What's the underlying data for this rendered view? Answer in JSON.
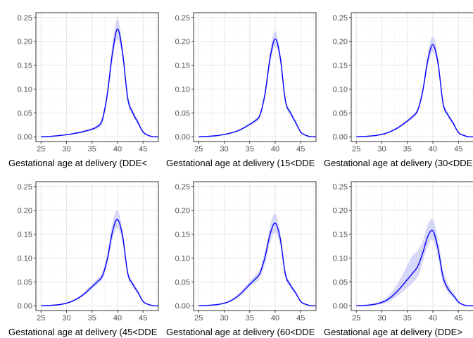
{
  "colors": {
    "line": "#0000ff",
    "band": "#c9c9f5",
    "grid_major": "#e6e6e6",
    "grid_minor": "#f2f2f2",
    "panel_border": "#333333"
  },
  "chart_data": [
    {
      "type": "line",
      "xlabel": "Gestational age at delivery (DDE<",
      "xlim": [
        24,
        48
      ],
      "ylim": [
        -0.01,
        0.26
      ],
      "x_ticks": [
        "25",
        "30",
        "35",
        "40",
        "45"
      ],
      "y_ticks": [
        "0.00",
        "0.05",
        "0.10",
        "0.15",
        "0.20",
        "0.25"
      ],
      "grid": true,
      "x": [
        25,
        27,
        29,
        31,
        33,
        35,
        36,
        37,
        38,
        39,
        40,
        41,
        42,
        43,
        44,
        45,
        46,
        47,
        48
      ],
      "y": [
        0.0,
        0.001,
        0.003,
        0.006,
        0.01,
        0.016,
        0.021,
        0.035,
        0.09,
        0.175,
        0.226,
        0.175,
        0.08,
        0.05,
        0.03,
        0.01,
        0.003,
        0.0,
        0.0
      ],
      "band_upper": [
        0.001,
        0.002,
        0.004,
        0.007,
        0.012,
        0.019,
        0.025,
        0.042,
        0.1,
        0.195,
        0.248,
        0.188,
        0.09,
        0.057,
        0.035,
        0.013,
        0.004,
        0.001,
        0.0
      ],
      "band_lower": [
        0.0,
        0.0,
        0.002,
        0.005,
        0.008,
        0.013,
        0.017,
        0.028,
        0.08,
        0.16,
        0.205,
        0.162,
        0.072,
        0.044,
        0.025,
        0.007,
        0.002,
        0.0,
        0.0
      ]
    },
    {
      "type": "line",
      "xlabel": "Gestational age at delivery (15<DDE",
      "xlim": [
        24,
        48
      ],
      "ylim": [
        -0.01,
        0.26
      ],
      "x_ticks": [
        "25",
        "30",
        "35",
        "40",
        "45"
      ],
      "y_ticks": [
        "0.00",
        "0.05",
        "0.10",
        "0.15",
        "0.20",
        "0.25"
      ],
      "grid": true,
      "x": [
        25,
        27,
        29,
        31,
        33,
        35,
        36,
        37,
        38,
        39,
        40,
        41,
        42,
        43,
        44,
        45,
        46,
        47,
        48
      ],
      "y": [
        0.0,
        0.001,
        0.003,
        0.007,
        0.014,
        0.026,
        0.033,
        0.045,
        0.09,
        0.165,
        0.205,
        0.165,
        0.075,
        0.05,
        0.03,
        0.01,
        0.003,
        0.0,
        0.0
      ],
      "band_upper": [
        0.001,
        0.002,
        0.004,
        0.008,
        0.016,
        0.029,
        0.037,
        0.05,
        0.098,
        0.18,
        0.222,
        0.176,
        0.082,
        0.055,
        0.034,
        0.012,
        0.004,
        0.001,
        0.0
      ],
      "band_lower": [
        0.0,
        0.0,
        0.002,
        0.006,
        0.012,
        0.023,
        0.029,
        0.04,
        0.082,
        0.152,
        0.19,
        0.154,
        0.068,
        0.045,
        0.026,
        0.008,
        0.002,
        0.0,
        0.0
      ]
    },
    {
      "type": "line",
      "xlabel": "Gestational age at delivery (30<DDE",
      "xlim": [
        24,
        48
      ],
      "ylim": [
        -0.01,
        0.26
      ],
      "x_ticks": [
        "25",
        "30",
        "35",
        "40",
        "45"
      ],
      "y_ticks": [
        "0.00",
        "0.05",
        "0.10",
        "0.15",
        "0.20",
        "0.25"
      ],
      "grid": true,
      "x": [
        25,
        27,
        29,
        31,
        33,
        35,
        36,
        37,
        38,
        39,
        40,
        41,
        42,
        43,
        44,
        45,
        46,
        47,
        48
      ],
      "y": [
        0.0,
        0.001,
        0.003,
        0.008,
        0.018,
        0.033,
        0.042,
        0.055,
        0.095,
        0.16,
        0.193,
        0.155,
        0.07,
        0.045,
        0.028,
        0.009,
        0.003,
        0.0,
        0.0
      ],
      "band_upper": [
        0.001,
        0.002,
        0.004,
        0.009,
        0.02,
        0.036,
        0.046,
        0.06,
        0.103,
        0.174,
        0.21,
        0.166,
        0.077,
        0.05,
        0.032,
        0.011,
        0.004,
        0.001,
        0.0
      ],
      "band_lower": [
        0.0,
        0.0,
        0.002,
        0.007,
        0.016,
        0.03,
        0.038,
        0.05,
        0.087,
        0.147,
        0.177,
        0.144,
        0.063,
        0.04,
        0.024,
        0.007,
        0.002,
        0.0,
        0.0
      ]
    },
    {
      "type": "line",
      "xlabel": "Gestational age at delivery (45<DDE",
      "xlim": [
        24,
        48
      ],
      "ylim": [
        -0.01,
        0.26
      ],
      "x_ticks": [
        "25",
        "30",
        "35",
        "40",
        "45"
      ],
      "y_ticks": [
        "0.00",
        "0.05",
        "0.10",
        "0.15",
        "0.20",
        "0.25"
      ],
      "grid": true,
      "x": [
        25,
        27,
        29,
        31,
        33,
        35,
        36,
        37,
        38,
        39,
        40,
        41,
        42,
        43,
        44,
        45,
        46,
        47,
        48
      ],
      "y": [
        0.0,
        0.001,
        0.003,
        0.009,
        0.021,
        0.04,
        0.05,
        0.062,
        0.098,
        0.155,
        0.181,
        0.145,
        0.068,
        0.045,
        0.028,
        0.009,
        0.003,
        0.0,
        0.0
      ],
      "band_upper": [
        0.001,
        0.002,
        0.005,
        0.011,
        0.024,
        0.045,
        0.056,
        0.07,
        0.11,
        0.172,
        0.2,
        0.158,
        0.076,
        0.051,
        0.032,
        0.011,
        0.004,
        0.001,
        0.0
      ],
      "band_lower": [
        0.0,
        0.0,
        0.002,
        0.007,
        0.018,
        0.035,
        0.044,
        0.055,
        0.087,
        0.139,
        0.163,
        0.132,
        0.061,
        0.039,
        0.024,
        0.007,
        0.002,
        0.0,
        0.0
      ]
    },
    {
      "type": "line",
      "xlabel": "Gestational age at delivery (60<DDE",
      "xlim": [
        24,
        48
      ],
      "ylim": [
        -0.01,
        0.26
      ],
      "x_ticks": [
        "25",
        "30",
        "35",
        "40",
        "45"
      ],
      "y_ticks": [
        "0.00",
        "0.05",
        "0.10",
        "0.15",
        "0.20",
        "0.25"
      ],
      "grid": true,
      "x": [
        25,
        27,
        29,
        31,
        33,
        35,
        36,
        37,
        38,
        39,
        40,
        41,
        42,
        43,
        44,
        45,
        46,
        47,
        48
      ],
      "y": [
        0.0,
        0.001,
        0.003,
        0.009,
        0.023,
        0.045,
        0.055,
        0.068,
        0.102,
        0.15,
        0.173,
        0.14,
        0.066,
        0.043,
        0.027,
        0.009,
        0.003,
        0.0,
        0.0
      ],
      "band_upper": [
        0.001,
        0.002,
        0.005,
        0.011,
        0.027,
        0.051,
        0.063,
        0.077,
        0.115,
        0.168,
        0.193,
        0.154,
        0.074,
        0.049,
        0.031,
        0.011,
        0.004,
        0.001,
        0.0
      ],
      "band_lower": [
        0.0,
        0.0,
        0.002,
        0.007,
        0.019,
        0.039,
        0.047,
        0.059,
        0.089,
        0.132,
        0.153,
        0.126,
        0.058,
        0.037,
        0.023,
        0.007,
        0.002,
        0.0,
        0.0
      ]
    },
    {
      "type": "line",
      "xlabel": "Gestational age at delivery (DDE>",
      "xlim": [
        24,
        48
      ],
      "ylim": [
        -0.01,
        0.26
      ],
      "x_ticks": [
        "25",
        "30",
        "35",
        "40",
        "45"
      ],
      "y_ticks": [
        "0.00",
        "0.05",
        "0.10",
        "0.15",
        "0.20",
        "0.25"
      ],
      "grid": true,
      "x": [
        25,
        27,
        29,
        31,
        33,
        35,
        36,
        37,
        38,
        39,
        40,
        41,
        42,
        43,
        44,
        45,
        46,
        47,
        48
      ],
      "y": [
        0.0,
        0.001,
        0.004,
        0.012,
        0.03,
        0.055,
        0.068,
        0.082,
        0.11,
        0.145,
        0.157,
        0.12,
        0.06,
        0.035,
        0.022,
        0.008,
        0.002,
        0.0,
        0.0
      ],
      "band_upper": [
        0.001,
        0.003,
        0.007,
        0.018,
        0.045,
        0.085,
        0.105,
        0.115,
        0.135,
        0.17,
        0.18,
        0.14,
        0.075,
        0.045,
        0.028,
        0.011,
        0.003,
        0.001,
        0.0
      ],
      "band_lower": [
        0.0,
        0.0,
        0.002,
        0.007,
        0.02,
        0.038,
        0.048,
        0.06,
        0.09,
        0.125,
        0.138,
        0.102,
        0.048,
        0.027,
        0.016,
        0.005,
        0.001,
        0.0,
        0.0
      ]
    }
  ]
}
